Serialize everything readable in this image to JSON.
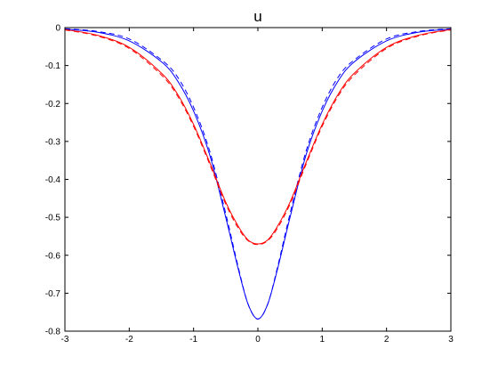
{
  "chart_data": {
    "type": "line",
    "title": "u",
    "xlabel": "",
    "ylabel": "",
    "xlim": [
      -3,
      3
    ],
    "ylim": [
      -0.8,
      0
    ],
    "xticks": [
      "-3",
      "-2",
      "-1",
      "0",
      "1",
      "2",
      "3"
    ],
    "yticks": [
      "0",
      "-0.1",
      "-0.2",
      "-0.3",
      "-0.4",
      "-0.5",
      "-0.6",
      "-0.7",
      "-0.8"
    ],
    "grid": false,
    "legend": "none",
    "series": [
      {
        "color": "#0000ff",
        "style": "solid",
        "x": [
          -3,
          -2.5,
          -2,
          -1.5,
          -1.25,
          -1,
          -0.75,
          -0.5,
          -0.3,
          -0.15,
          0,
          0.15,
          0.3,
          0.5,
          0.75,
          1,
          1.25,
          1.5,
          2,
          2.5,
          3
        ],
        "y": [
          -0.004,
          -0.012,
          -0.035,
          -0.09,
          -0.14,
          -0.22,
          -0.335,
          -0.5,
          -0.64,
          -0.73,
          -0.768,
          -0.73,
          -0.64,
          -0.5,
          -0.335,
          -0.22,
          -0.14,
          -0.09,
          -0.035,
          -0.012,
          -0.004
        ]
      },
      {
        "color": "#0000ff",
        "style": "dashed",
        "x": [
          -3,
          -2.5,
          -2,
          -1.5,
          -1.25,
          -1,
          -0.75,
          -0.5,
          -0.3,
          -0.15,
          0,
          0.15,
          0.3,
          0.5,
          0.75,
          1,
          1.25,
          1.5,
          2,
          2.5,
          3
        ],
        "y": [
          -0.003,
          -0.01,
          -0.03,
          -0.085,
          -0.13,
          -0.21,
          -0.325,
          -0.49,
          -0.635,
          -0.73,
          -0.768,
          -0.73,
          -0.635,
          -0.49,
          -0.325,
          -0.21,
          -0.13,
          -0.085,
          -0.03,
          -0.01,
          -0.003
        ]
      },
      {
        "color": "#ff0000",
        "style": "solid",
        "x": [
          -3,
          -2.5,
          -2,
          -1.5,
          -1.25,
          -1,
          -0.75,
          -0.5,
          -0.3,
          -0.15,
          0,
          0.15,
          0.3,
          0.5,
          0.75,
          1,
          1.25,
          1.5,
          2,
          2.5,
          3
        ],
        "y": [
          -0.005,
          -0.02,
          -0.052,
          -0.12,
          -0.175,
          -0.255,
          -0.355,
          -0.46,
          -0.525,
          -0.56,
          -0.57,
          -0.56,
          -0.525,
          -0.46,
          -0.355,
          -0.255,
          -0.175,
          -0.12,
          -0.052,
          -0.02,
          -0.005
        ]
      },
      {
        "color": "#ff0000",
        "style": "dashed",
        "x": [
          -3,
          -2.5,
          -2,
          -1.5,
          -1.25,
          -1,
          -0.75,
          -0.5,
          -0.3,
          -0.15,
          0,
          0.15,
          0.3,
          0.5,
          0.75,
          1,
          1.25,
          1.5,
          2,
          2.5,
          3
        ],
        "y": [
          -0.006,
          -0.022,
          -0.055,
          -0.125,
          -0.18,
          -0.26,
          -0.36,
          -0.465,
          -0.53,
          -0.562,
          -0.572,
          -0.562,
          -0.53,
          -0.465,
          -0.36,
          -0.26,
          -0.18,
          -0.125,
          -0.055,
          -0.022,
          -0.006
        ]
      }
    ]
  }
}
